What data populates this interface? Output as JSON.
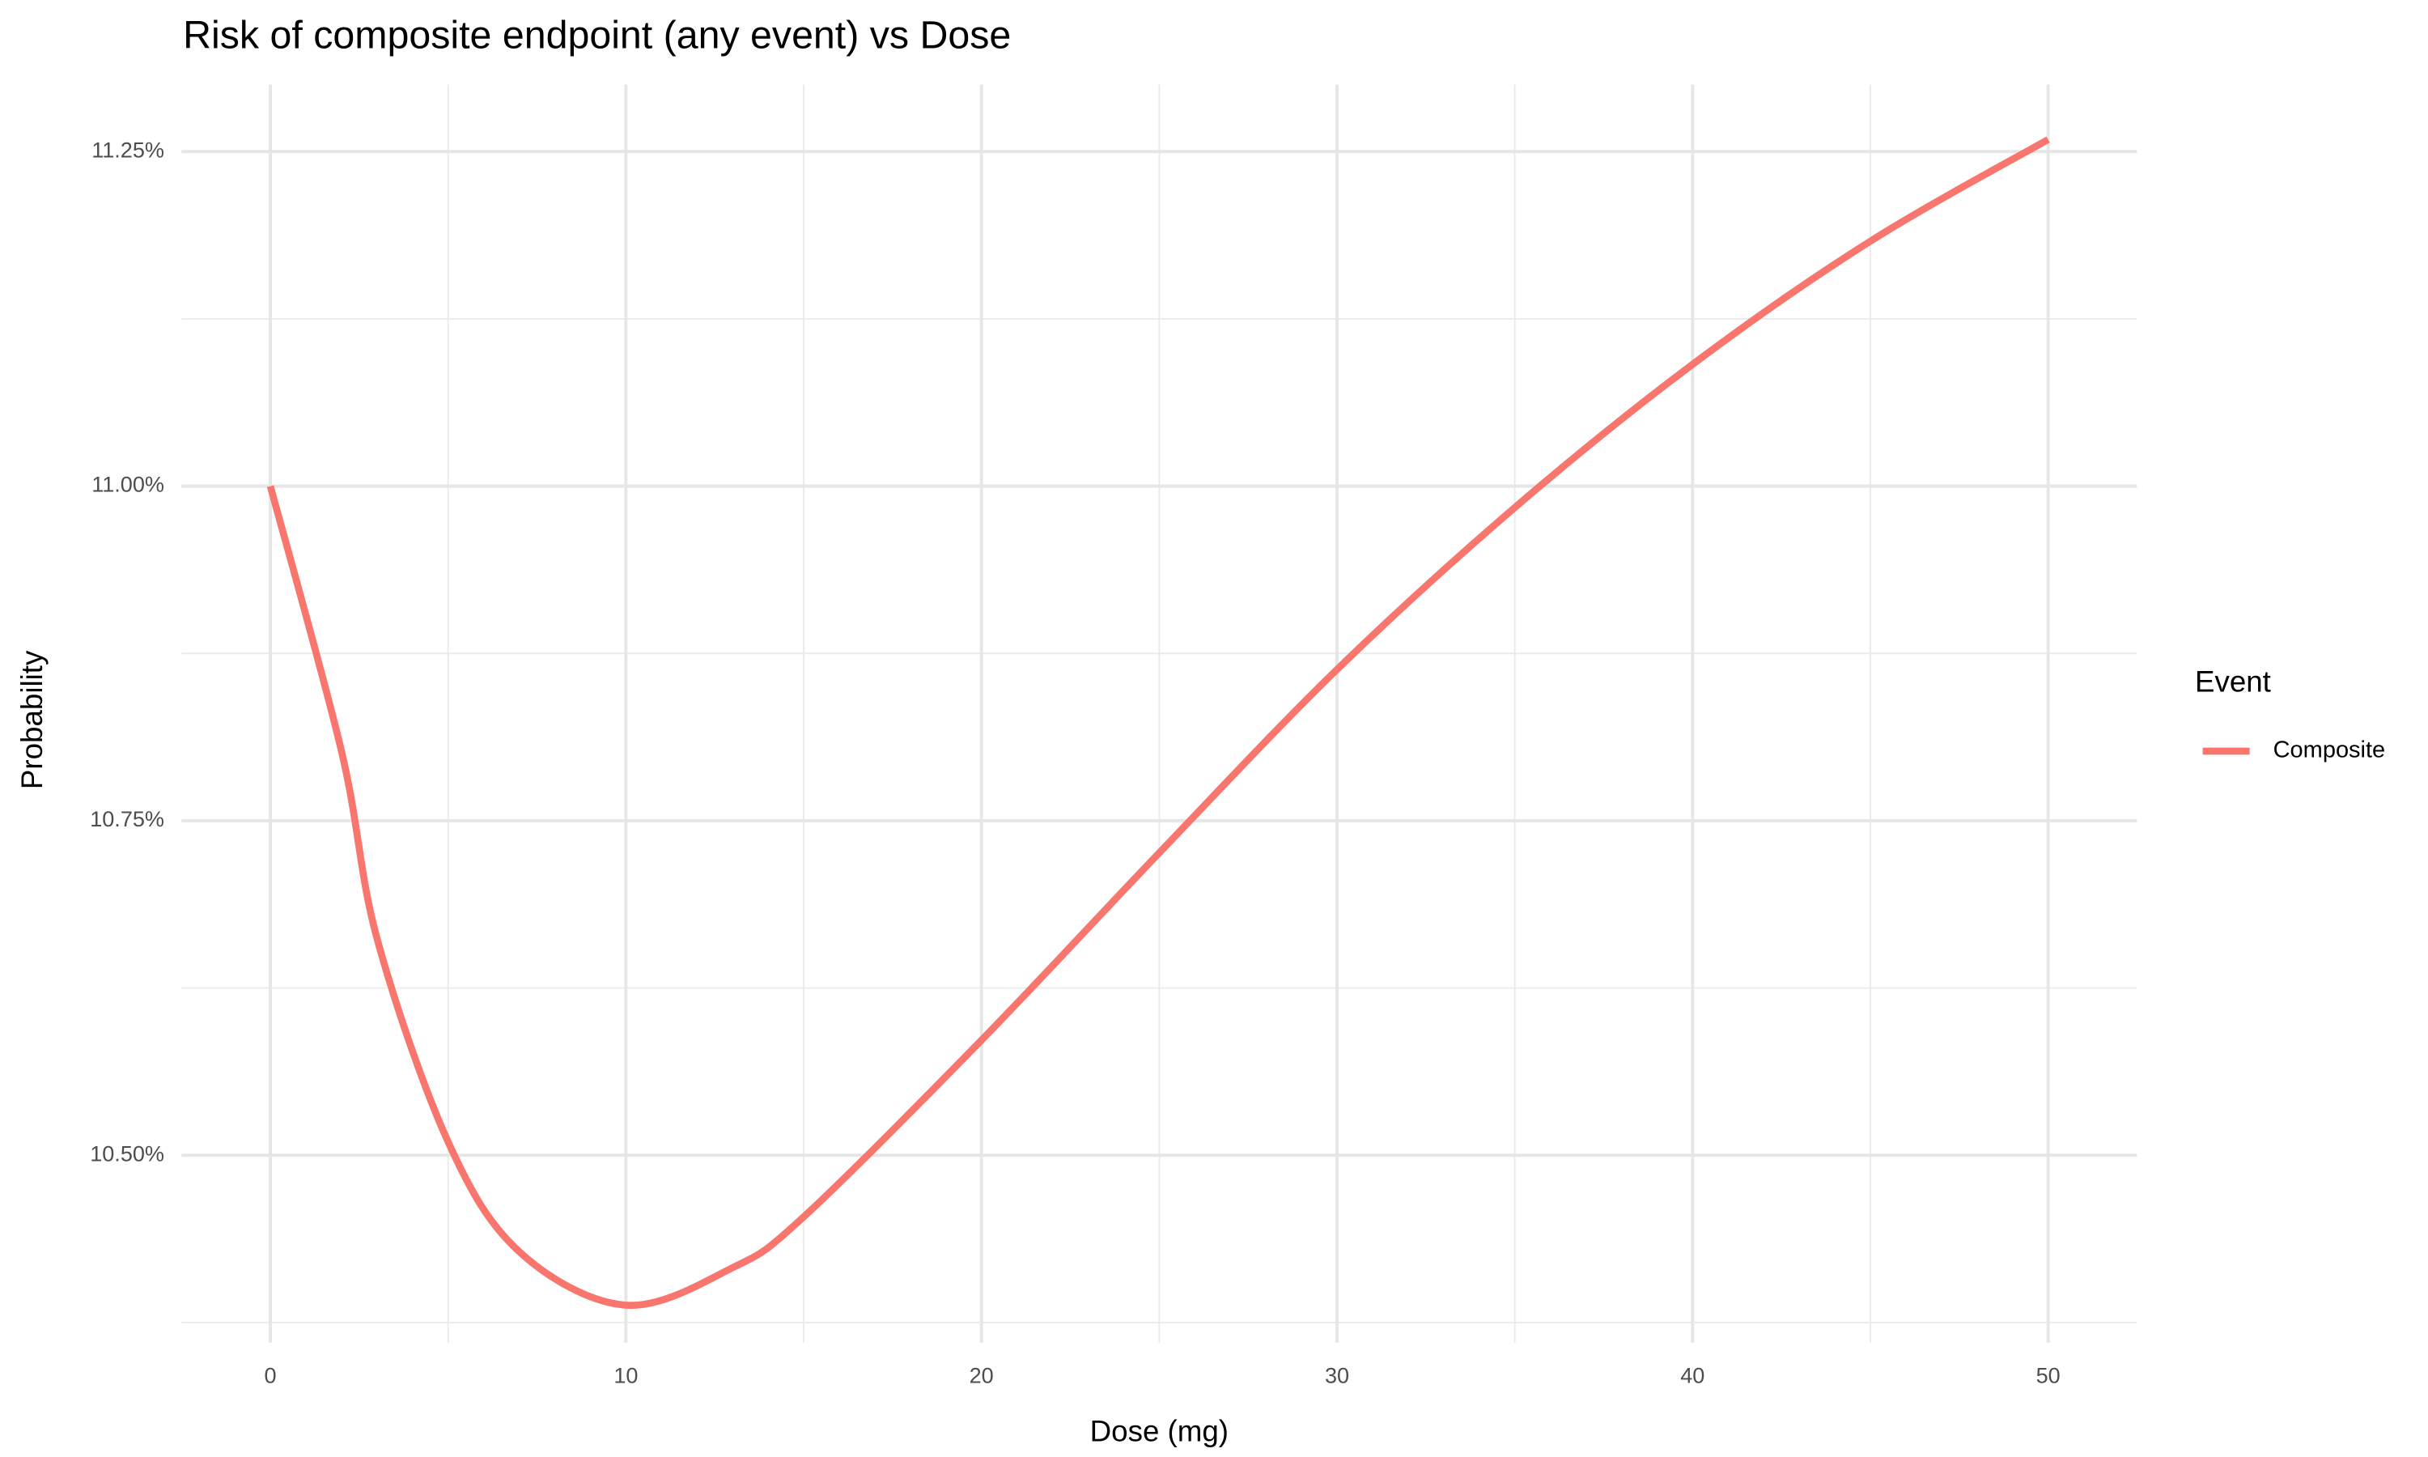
{
  "chart_data": {
    "type": "line",
    "title": "Risk of composite endpoint (any event) vs Dose",
    "x_label": "Dose (mg)",
    "y_label": "Probability",
    "legend_title": "Event",
    "legend_position": "right",
    "grid": true,
    "x": [
      0,
      2,
      3,
      5,
      7,
      10,
      13,
      15,
      20,
      25,
      30,
      35,
      40,
      45,
      50
    ],
    "series": [
      {
        "name": "Composite",
        "color": "#F8766D",
        "values": [
          11.0,
          10.802,
          10.662,
          10.51,
          10.428,
          10.388,
          10.416,
          10.454,
          10.586,
          10.726,
          10.863,
          10.984,
          11.091,
          11.183,
          11.259
        ]
      }
    ],
    "xlim": [
      -2.5,
      52.5
    ],
    "xticks": [
      0,
      10,
      20,
      30,
      40,
      50
    ],
    "ylim": [
      10.36,
      11.3
    ],
    "yticks": [
      {
        "value": 10.5,
        "label": "10.50%"
      },
      {
        "value": 10.75,
        "label": "10.75%"
      },
      {
        "value": 11.0,
        "label": "11.00%"
      },
      {
        "value": 11.25,
        "label": "11.25%"
      }
    ]
  }
}
